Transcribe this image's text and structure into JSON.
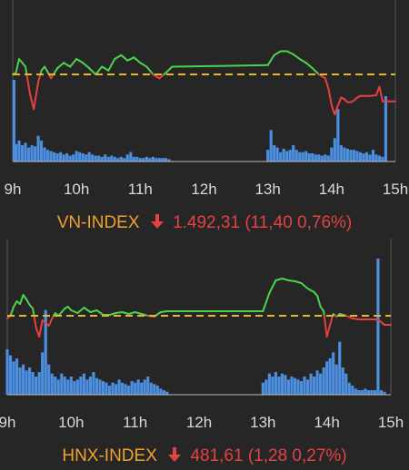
{
  "colors": {
    "up": "#4cd34c",
    "down": "#e64040",
    "reference": "#e8b62a",
    "volume": "#4c8fe0",
    "axis": "#bbbbbb",
    "label_name": "#f0a030",
    "label_value": "#e64040"
  },
  "chart_data": [
    {
      "type": "line",
      "index_name": "VN-INDEX",
      "value_text": "1.492,31 (11,40 0,76%)",
      "direction": "down",
      "x_ticks": [
        "9h",
        "10h",
        "11h",
        "12h",
        "13h",
        "14h",
        "15h"
      ],
      "reference": 0,
      "price": {
        "x": [
          9.0,
          9.05,
          9.1,
          9.2,
          9.27,
          9.33,
          9.4,
          9.45,
          9.5,
          9.55,
          9.6,
          9.7,
          9.8,
          9.9,
          10.0,
          10.1,
          10.2,
          10.3,
          10.4,
          10.5,
          10.6,
          10.7,
          10.8,
          10.9,
          11.0,
          11.1,
          11.2,
          11.3,
          11.4,
          11.5,
          13.0,
          13.1,
          13.2,
          13.3,
          13.4,
          13.5,
          13.6,
          13.7,
          13.8,
          13.9,
          13.95,
          14.0,
          14.05,
          14.1,
          14.15,
          14.2,
          14.25,
          14.3,
          14.35,
          14.4,
          14.45,
          14.5,
          14.6,
          14.7,
          14.75,
          14.8,
          14.9,
          15.0
        ],
        "y": [
          0,
          0.2,
          2.0,
          1.0,
          -2.5,
          -4.5,
          -1.0,
          0.5,
          1.0,
          0.3,
          -0.5,
          0.8,
          1.5,
          1.0,
          2.0,
          1.5,
          0.8,
          0.0,
          1.0,
          0.5,
          2.0,
          2.5,
          1.8,
          2.2,
          1.5,
          1.0,
          0.0,
          -0.5,
          0.2,
          1.0,
          1.2,
          2.5,
          3.0,
          3.0,
          2.6,
          2.0,
          1.5,
          0.8,
          0.0,
          -0.5,
          -1.8,
          -4.0,
          -5.2,
          -4.0,
          -3.0,
          -3.2,
          -3.6,
          -3.6,
          -3.4,
          -3.0,
          -2.8,
          -2.8,
          -2.8,
          -2.7,
          -1.6,
          -3.5,
          -3.5,
          -3.5
        ]
      },
      "volume": {
        "x": [
          9.02,
          9.05,
          9.1,
          9.15,
          9.2,
          9.25,
          9.3,
          9.35,
          9.4,
          9.45,
          9.5,
          9.55,
          9.6,
          9.65,
          9.7,
          9.75,
          9.8,
          9.85,
          9.9,
          9.95,
          10.0,
          10.05,
          10.1,
          10.15,
          10.2,
          10.25,
          10.3,
          10.35,
          10.4,
          10.45,
          10.5,
          10.55,
          10.6,
          10.65,
          10.7,
          10.75,
          10.8,
          10.85,
          10.9,
          10.95,
          11.0,
          11.05,
          11.1,
          11.15,
          11.2,
          11.25,
          11.3,
          11.35,
          11.4,
          11.45,
          13.0,
          13.05,
          13.1,
          13.15,
          13.2,
          13.25,
          13.3,
          13.35,
          13.4,
          13.45,
          13.5,
          13.55,
          13.6,
          13.65,
          13.7,
          13.75,
          13.8,
          13.85,
          13.9,
          13.95,
          14.0,
          14.05,
          14.1,
          14.15,
          14.2,
          14.25,
          14.3,
          14.35,
          14.4,
          14.45,
          14.5,
          14.55,
          14.6,
          14.65,
          14.7,
          14.75,
          14.8,
          14.85
        ],
        "y": [
          70,
          15,
          18,
          14,
          16,
          12,
          14,
          13,
          22,
          18,
          12,
          10,
          9,
          8,
          7,
          8,
          6,
          7,
          5,
          6,
          9,
          8,
          7,
          6,
          8,
          6,
          5,
          5,
          4,
          6,
          4,
          5,
          4,
          3,
          4,
          3,
          6,
          8,
          4,
          4,
          3,
          3,
          4,
          3,
          4,
          3,
          3,
          3,
          3,
          2,
          10,
          27,
          14,
          12,
          8,
          11,
          9,
          10,
          14,
          10,
          8,
          8,
          9,
          7,
          7,
          6,
          6,
          5,
          6,
          5,
          12,
          20,
          45,
          14,
          12,
          11,
          10,
          10,
          9,
          8,
          7,
          8,
          6,
          10,
          6,
          5,
          4,
          56
        ]
      }
    },
    {
      "type": "line",
      "index_name": "HNX-INDEX",
      "value_text": "481,61 (1,28 0,27%)",
      "direction": "down",
      "x_ticks": [
        "9h",
        "10h",
        "11h",
        "12h",
        "13h",
        "14h",
        "15h"
      ],
      "reference": 0,
      "price": {
        "x": [
          9.0,
          9.05,
          9.1,
          9.15,
          9.2,
          9.25,
          9.3,
          9.35,
          9.4,
          9.45,
          9.5,
          9.55,
          9.6,
          9.65,
          9.7,
          9.75,
          9.8,
          9.85,
          9.9,
          9.95,
          10.0,
          10.1,
          10.2,
          10.3,
          10.4,
          10.5,
          10.6,
          10.7,
          10.8,
          10.9,
          11.0,
          11.1,
          11.2,
          11.3,
          11.4,
          11.5,
          13.0,
          13.1,
          13.2,
          13.3,
          13.4,
          13.5,
          13.6,
          13.7,
          13.8,
          13.85,
          13.9,
          13.95,
          14.0,
          14.05,
          14.1,
          14.15,
          14.2,
          14.3,
          14.4,
          14.5,
          14.6,
          14.7,
          14.8,
          14.9,
          15.0
        ],
        "y": [
          -0.3,
          0.0,
          1.0,
          1.6,
          1.3,
          2.3,
          1.8,
          1.2,
          0.8,
          -1.3,
          -2.3,
          -0.5,
          -0.8,
          -1.1,
          -0.3,
          0.3,
          0.0,
          0.4,
          0.8,
          1.0,
          0.6,
          0.3,
          0.9,
          0.4,
          0.6,
          0.1,
          0.1,
          0.3,
          0.4,
          0.2,
          0.4,
          0.2,
          0.0,
          -0.1,
          0.4,
          0.5,
          0.5,
          2.5,
          3.9,
          4.1,
          3.9,
          3.8,
          3.6,
          3.0,
          2.6,
          2.2,
          1.0,
          0.5,
          -2.3,
          -1.0,
          0.2,
          -0.1,
          0.2,
          0.0,
          -0.3,
          -0.4,
          -0.4,
          -0.4,
          -0.4,
          -1.0,
          -1.0
        ]
      },
      "volume": {
        "x": [
          9.0,
          9.05,
          9.1,
          9.15,
          9.2,
          9.25,
          9.3,
          9.35,
          9.4,
          9.45,
          9.5,
          9.55,
          9.6,
          9.65,
          9.7,
          9.75,
          9.8,
          9.85,
          9.9,
          9.95,
          10.0,
          10.05,
          10.1,
          10.15,
          10.2,
          10.25,
          10.3,
          10.35,
          10.4,
          10.45,
          10.5,
          10.55,
          10.6,
          10.65,
          10.7,
          10.75,
          10.8,
          10.85,
          10.9,
          10.95,
          11.0,
          11.05,
          11.1,
          11.15,
          11.2,
          11.25,
          11.3,
          11.35,
          11.4,
          11.45,
          11.5,
          13.0,
          13.05,
          13.1,
          13.15,
          13.2,
          13.25,
          13.3,
          13.35,
          13.4,
          13.45,
          13.5,
          13.55,
          13.6,
          13.65,
          13.7,
          13.75,
          13.8,
          13.85,
          13.9,
          13.95,
          14.0,
          14.05,
          14.1,
          14.15,
          14.2,
          14.25,
          14.3,
          14.35,
          14.4,
          14.45,
          14.5,
          14.55,
          14.6,
          14.65,
          14.7,
          14.75,
          14.8,
          14.85,
          14.9
        ],
        "y": [
          30,
          26,
          22,
          24,
          18,
          20,
          16,
          18,
          15,
          12,
          15,
          28,
          56,
          20,
          14,
          12,
          10,
          14,
          12,
          10,
          12,
          9,
          10,
          12,
          14,
          10,
          12,
          15,
          11,
          10,
          9,
          8,
          6,
          8,
          7,
          10,
          8,
          7,
          6,
          9,
          8,
          10,
          8,
          10,
          12,
          8,
          7,
          6,
          4,
          3,
          2,
          8,
          10,
          14,
          12,
          15,
          12,
          14,
          13,
          10,
          12,
          11,
          10,
          9,
          12,
          10,
          14,
          12,
          16,
          14,
          18,
          22,
          24,
          28,
          20,
          35,
          18,
          14,
          8,
          6,
          4,
          3,
          3,
          4,
          3,
          3,
          3,
          90,
          3,
          2
        ]
      }
    }
  ]
}
